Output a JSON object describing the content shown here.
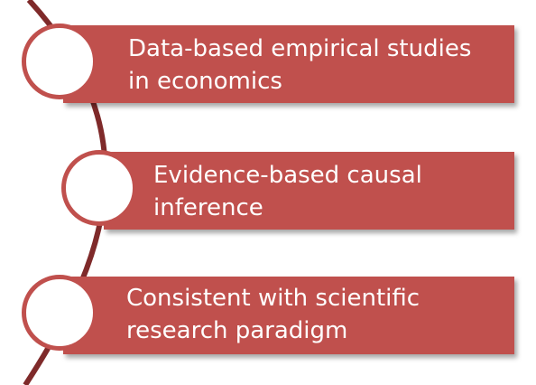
{
  "diagram": {
    "items": [
      {
        "label": "Data-based empirical studies\nin economics"
      },
      {
        "label": "Evidence-based causal\ninference"
      },
      {
        "label": "Consistent with scientific\nresearch paradigm"
      }
    ],
    "colors": {
      "bar": "#c0504d",
      "arc": "#7f2a2a",
      "text": "#ffffff",
      "circle_fill": "#ffffff"
    }
  }
}
